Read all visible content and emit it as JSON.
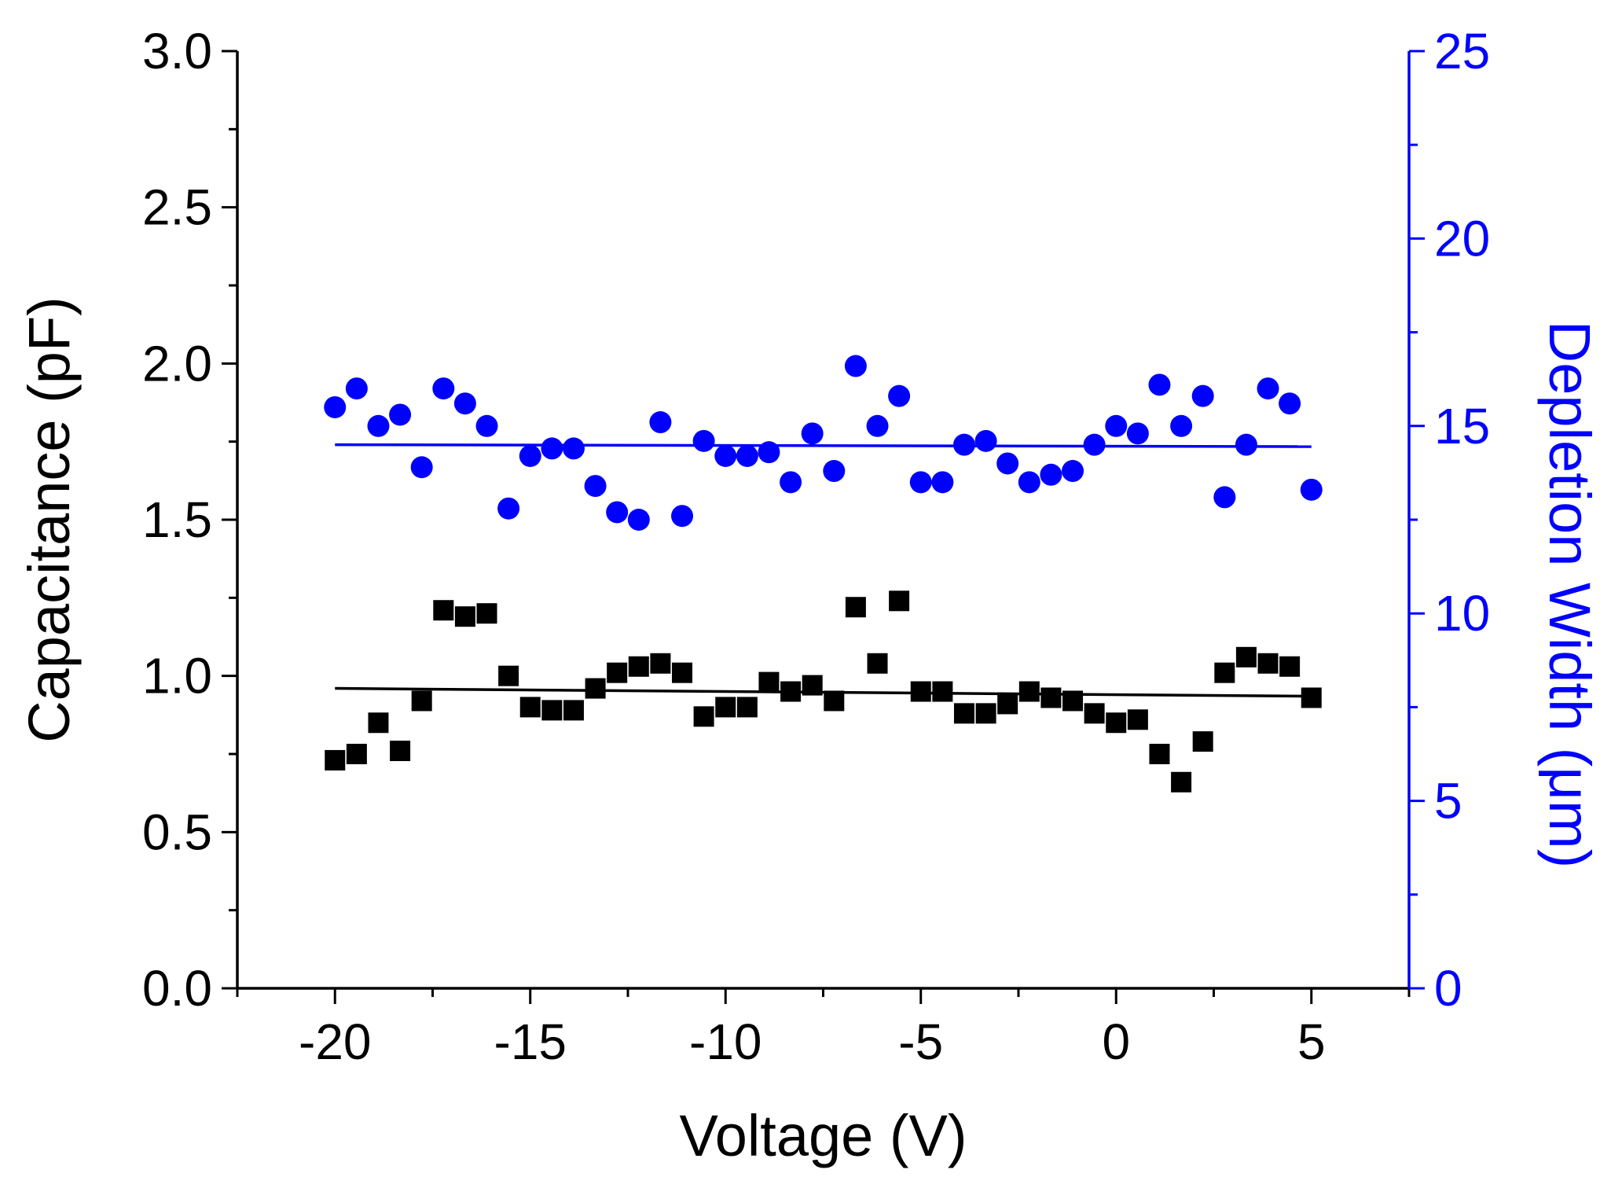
{
  "chart_data": {
    "type": "scatter",
    "title": "",
    "xlabel": "Voltage (V)",
    "ylabel": "Capacitance (pF)",
    "y2label": "Depletion Width (μm)",
    "xlim": [
      -22.5,
      7.5
    ],
    "ylim": [
      0,
      3.0
    ],
    "y2lim": [
      0,
      25
    ],
    "x_ticks": [
      -20,
      -15,
      -10,
      -5,
      0,
      5
    ],
    "x_tick_labels": [
      "-20",
      "-15",
      "-10",
      "-5",
      "0",
      "5"
    ],
    "y_ticks": [
      0.0,
      0.5,
      1.0,
      1.5,
      2.0,
      2.5,
      3.0
    ],
    "y_tick_labels": [
      "0.0",
      "0.5",
      "1.0",
      "1.5",
      "2.0",
      "2.5",
      "3.0"
    ],
    "y2_ticks": [
      0,
      5,
      10,
      15,
      20,
      25
    ],
    "y2_tick_labels": [
      "0",
      "5",
      "10",
      "15",
      "20",
      "25"
    ],
    "x": [
      -20.0,
      -19.444,
      -18.889,
      -18.333,
      -17.778,
      -17.222,
      -16.667,
      -16.111,
      -15.556,
      -15.0,
      -14.444,
      -13.889,
      -13.333,
      -12.778,
      -12.222,
      -11.667,
      -11.111,
      -10.556,
      -10.0,
      -9.444,
      -8.889,
      -8.333,
      -7.778,
      -7.222,
      -6.667,
      -6.111,
      -5.556,
      -5.0,
      -4.444,
      -3.889,
      -3.333,
      -2.778,
      -2.222,
      -1.667,
      -1.111,
      -0.556,
      0.0,
      0.556,
      1.111,
      1.667,
      2.222,
      2.778,
      3.333,
      3.889,
      4.444,
      5.0
    ],
    "series": [
      {
        "name": "Capacitance",
        "axis": "left",
        "marker": "square",
        "color": "#000000",
        "values": [
          0.73,
          0.75,
          0.85,
          0.76,
          0.92,
          1.21,
          1.19,
          1.2,
          1.0,
          0.9,
          0.89,
          0.89,
          0.96,
          1.01,
          1.03,
          1.04,
          1.01,
          0.87,
          0.9,
          0.9,
          0.98,
          0.95,
          0.97,
          0.92,
          1.22,
          1.04,
          1.24,
          0.95,
          0.95,
          0.88,
          0.88,
          0.91,
          0.95,
          0.93,
          0.92,
          0.88,
          0.85,
          0.86,
          0.75,
          0.66,
          0.79,
          1.01,
          1.06,
          1.04,
          1.03,
          0.93
        ],
        "fit": {
          "x": [
            -20,
            5
          ],
          "y": [
            0.96,
            0.935
          ]
        }
      },
      {
        "name": "Depletion Width",
        "axis": "right",
        "marker": "circle",
        "color": "#0000ff",
        "values": [
          15.5,
          16.0,
          15.0,
          15.3,
          13.9,
          16.0,
          15.6,
          15.0,
          12.8,
          14.2,
          14.4,
          14.4,
          13.4,
          12.7,
          12.5,
          15.1,
          12.6,
          14.6,
          14.2,
          14.2,
          14.3,
          13.5,
          14.8,
          13.8,
          16.6,
          15.0,
          15.8,
          13.5,
          13.5,
          14.5,
          14.6,
          14.0,
          13.5,
          13.7,
          13.8,
          14.5,
          15.0,
          14.8,
          16.1,
          15.0,
          15.8,
          13.1,
          14.5,
          16.0,
          15.6,
          13.3
        ],
        "fit": {
          "x": [
            -20,
            5
          ],
          "y": [
            14.5,
            14.45
          ]
        }
      }
    ]
  }
}
